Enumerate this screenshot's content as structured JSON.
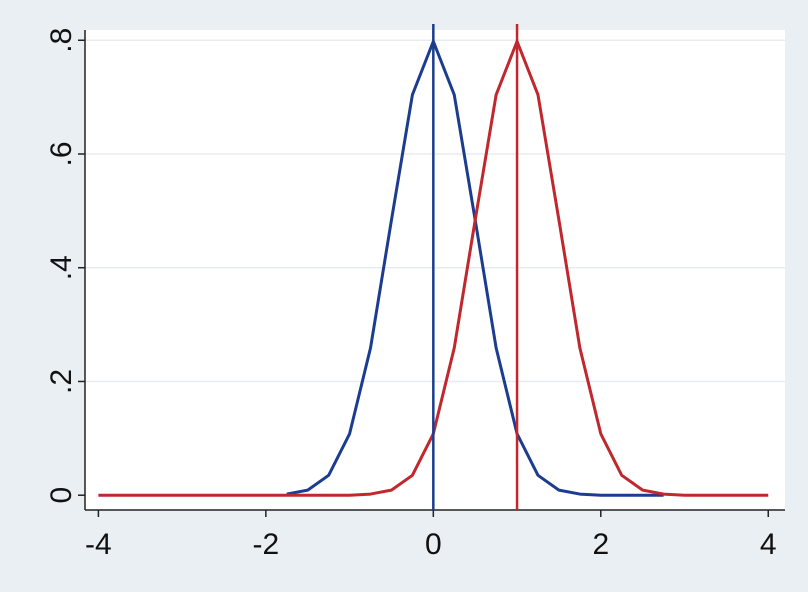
{
  "chart_data": {
    "type": "line",
    "x": [
      -4,
      -3.75,
      -3.5,
      -3.25,
      -3,
      -2.75,
      -2.5,
      -2.25,
      -2,
      -1.75,
      -1.5,
      -1.25,
      -1,
      -0.75,
      -0.5,
      -0.25,
      0,
      0.25,
      0.5,
      0.75,
      1,
      1.25,
      1.5,
      1.75,
      2,
      2.25,
      2.5,
      2.75,
      3,
      3.25,
      3.5,
      3.75,
      4
    ],
    "series": [
      {
        "color": "#1c3d8f",
        "values": [
          null,
          null,
          null,
          null,
          null,
          null,
          null,
          null,
          null,
          0.002,
          0.009,
          0.035,
          0.108,
          0.259,
          0.484,
          0.704,
          0.798,
          0.704,
          0.484,
          0.259,
          0.108,
          0.035,
          0.009,
          0.002,
          0,
          0,
          0,
          0,
          null,
          null,
          null,
          null,
          null
        ]
      },
      {
        "color": "#c0282d",
        "values": [
          0,
          0,
          0,
          0,
          0,
          0,
          0,
          0,
          0,
          0,
          0,
          0,
          0,
          0.002,
          0.009,
          0.035,
          0.108,
          0.259,
          0.484,
          0.704,
          0.798,
          0.704,
          0.484,
          0.259,
          0.108,
          0.035,
          0.009,
          0.002,
          0,
          0,
          0,
          0,
          0
        ]
      }
    ],
    "vlines": [
      {
        "value": 0,
        "color": "#1c3d8f"
      },
      {
        "value": 1,
        "color": "#c0282d"
      }
    ],
    "xlim": [
      -4.16,
      4.2
    ],
    "xticks": [
      -4,
      -2,
      0,
      2,
      4
    ],
    "ylim": [
      -0.026,
      0.818
    ],
    "yticks": [
      0,
      {
        "value": 0.2,
        "label": ".2"
      },
      {
        "value": 0.4,
        "label": ".4"
      },
      {
        "value": 0.6,
        "label": ".6"
      },
      {
        "value": 0.8,
        "label": ".8"
      }
    ],
    "grid": true
  }
}
